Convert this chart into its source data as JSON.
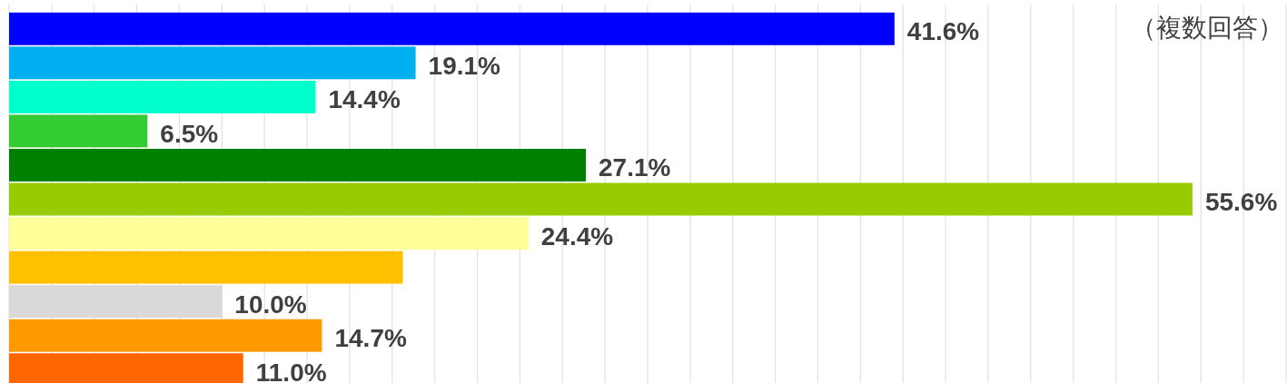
{
  "chart_data": {
    "type": "bar",
    "orientation": "horizontal",
    "categories": [
      null,
      null,
      null,
      null,
      null,
      null,
      null,
      null,
      null,
      null,
      null
    ],
    "values": [
      41.6,
      19.1,
      14.4,
      6.5,
      27.1,
      55.6,
      24.4,
      18.5,
      10.0,
      14.7,
      11.0
    ],
    "colors": [
      "#0000ff",
      "#00b0f0",
      "#00ffcc",
      "#33cc33",
      "#008000",
      "#99cc00",
      "#ffff99",
      "#ffc000",
      "#d9d9d9",
      "#ff9900",
      "#ff6600"
    ],
    "value_labels": [
      "41.6%",
      "19.1%",
      "14.4%",
      "6.5%",
      "27.1%",
      "55.6%",
      "24.4%",
      null,
      "10.0%",
      "14.7%",
      "11.0%"
    ],
    "xlim": [
      0,
      60
    ],
    "xticks": [
      {
        "value": 0,
        "label": null
      },
      {
        "value": 2,
        "label": null
      },
      {
        "value": 4,
        "label": null
      },
      {
        "value": 6,
        "label": null
      },
      {
        "value": 8,
        "label": null
      },
      {
        "value": 10,
        "label": null
      },
      {
        "value": 12,
        "label": null
      },
      {
        "value": 14,
        "label": null
      },
      {
        "value": 16,
        "label": null
      },
      {
        "value": 18,
        "label": null
      },
      {
        "value": 20,
        "label": null
      },
      {
        "value": 22,
        "label": null
      },
      {
        "value": 24,
        "label": null
      },
      {
        "value": 26,
        "label": null
      },
      {
        "value": 28,
        "label": null
      },
      {
        "value": 30,
        "label": null
      },
      {
        "value": 32,
        "label": null
      },
      {
        "value": 34,
        "label": null
      },
      {
        "value": 36,
        "label": null
      },
      {
        "value": 38,
        "label": null
      },
      {
        "value": 40,
        "label": null
      },
      {
        "value": 42,
        "label": null
      },
      {
        "value": 44,
        "label": null
      },
      {
        "value": 46,
        "label": null
      },
      {
        "value": 48,
        "label": null
      },
      {
        "value": 50,
        "label": null
      },
      {
        "value": 52,
        "label": null
      },
      {
        "value": 54,
        "label": null
      },
      {
        "value": 56,
        "label": null
      },
      {
        "value": 58,
        "label": null
      },
      {
        "value": 60,
        "label": null
      }
    ],
    "grid": "x",
    "annotations": [
      "（複数回答）"
    ]
  }
}
